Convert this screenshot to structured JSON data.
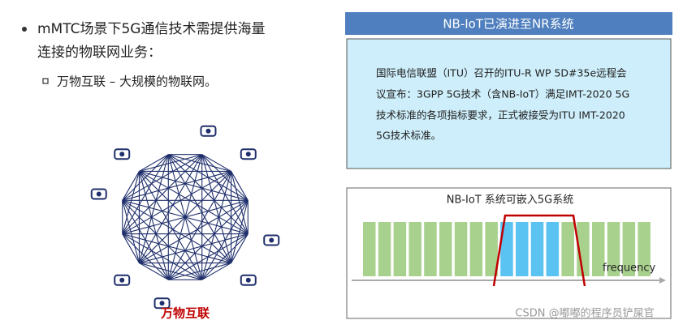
{
  "bullets": {
    "main": [
      "mMTC场景下5G通信技术需提供海量",
      "连接的物联网业务："
    ],
    "sub": "万物互联 – 大规模的物联网。"
  },
  "diagram": {
    "caption": "万物互联"
  },
  "panel": {
    "title": "NB-IoT已演进至NR系统",
    "text": [
      "国际电信联盟（ITU）召开的ITU-R WP 5D#35e远程会",
      "议宣布：3GPP 5G技术（含NB-IoT）满足IMT-2020 5G",
      "技术标准的各项指标要求，正式被接受为ITU IMT-2020",
      "5G技术标准。"
    ]
  },
  "spectrum": {
    "title": "NB-IoT 系统可嵌入5G系统",
    "axis_label": "frequency"
  },
  "watermark": "CSDN @嘟嘟的程序员铲屎官"
}
